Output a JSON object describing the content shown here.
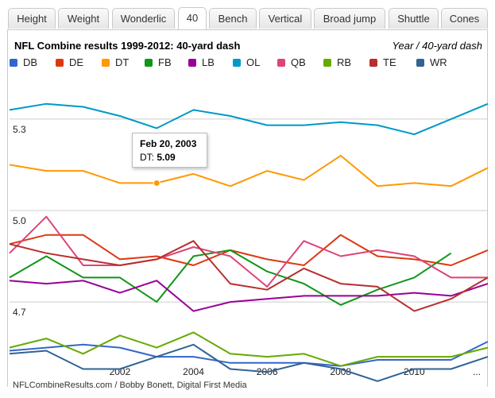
{
  "tabs": [
    {
      "label": "Height"
    },
    {
      "label": "Weight"
    },
    {
      "label": "Wonderlic"
    },
    {
      "label": "40",
      "active": true
    },
    {
      "label": "Bench"
    },
    {
      "label": "Vertical"
    },
    {
      "label": "Broad jump"
    },
    {
      "label": "Shuttle"
    },
    {
      "label": "Cones"
    }
  ],
  "tooltip": {
    "date": "Feb 20, 2003",
    "series": "DT:",
    "value": "5.09"
  },
  "credit": "NFLCombineResults.com / Bobby Bonett, Digital First Media",
  "chart_data": {
    "type": "line",
    "title": "NFL Combine results 1999-2012: 40-yard dash",
    "axis_note": "Year / 40-yard dash",
    "x": [
      1999,
      2000,
      2001,
      2002,
      2003,
      2004,
      2005,
      2006,
      2007,
      2008,
      2009,
      2010,
      2011,
      2012
    ],
    "x_ticks": [
      "2002",
      "2004",
      "2006",
      "2008",
      "2010",
      "..."
    ],
    "y_ticks": [
      "5.3",
      "5.0",
      "4.7"
    ],
    "ylim": [
      4.45,
      5.43
    ],
    "grid": true,
    "series": [
      {
        "name": "DB",
        "color": "#3366cc",
        "values": [
          4.54,
          4.55,
          4.56,
          4.55,
          4.52,
          4.52,
          4.5,
          4.5,
          4.5,
          4.49,
          4.51,
          4.51,
          4.51,
          4.57
        ]
      },
      {
        "name": "DE",
        "color": "#dc3912",
        "values": [
          4.89,
          4.92,
          4.92,
          4.84,
          4.85,
          4.82,
          4.87,
          4.84,
          4.82,
          4.92,
          4.85,
          4.84,
          4.82,
          4.87
        ]
      },
      {
        "name": "DT",
        "color": "#ff9900",
        "values": [
          5.15,
          5.13,
          5.13,
          5.09,
          5.09,
          5.12,
          5.08,
          5.13,
          5.1,
          5.18,
          5.08,
          5.09,
          5.08,
          5.14
        ]
      },
      {
        "name": "FB",
        "color": "#109618",
        "values": [
          4.78,
          4.85,
          4.78,
          4.78,
          4.7,
          4.85,
          4.87,
          4.8,
          4.76,
          4.69,
          4.74,
          4.78,
          4.86,
          null
        ]
      },
      {
        "name": "LB",
        "color": "#990099",
        "values": [
          4.77,
          4.76,
          4.77,
          4.73,
          4.77,
          4.67,
          4.7,
          4.71,
          4.72,
          4.72,
          4.72,
          4.73,
          4.72,
          4.76
        ]
      },
      {
        "name": "OL",
        "color": "#0099c6",
        "values": [
          5.33,
          5.35,
          5.34,
          5.31,
          5.27,
          5.33,
          5.31,
          5.28,
          5.28,
          5.29,
          5.28,
          5.25,
          5.3,
          5.35
        ]
      },
      {
        "name": "QB",
        "color": "#dd4477",
        "values": [
          4.86,
          4.98,
          4.82,
          4.82,
          4.84,
          4.88,
          4.85,
          4.75,
          4.9,
          4.85,
          4.87,
          4.85,
          4.78,
          4.78
        ]
      },
      {
        "name": "RB",
        "color": "#66aa00",
        "values": [
          4.55,
          4.58,
          4.53,
          4.59,
          4.55,
          4.6,
          4.53,
          4.52,
          4.53,
          4.49,
          4.52,
          4.52,
          4.52,
          4.55
        ]
      },
      {
        "name": "TE",
        "color": "#b82e2e",
        "values": [
          4.89,
          4.86,
          4.84,
          4.82,
          4.84,
          4.9,
          4.76,
          4.74,
          4.81,
          4.76,
          4.75,
          4.67,
          4.71,
          4.78
        ]
      },
      {
        "name": "WR",
        "color": "#316395",
        "values": [
          4.53,
          4.54,
          4.48,
          4.48,
          4.52,
          4.56,
          4.48,
          4.47,
          4.5,
          4.48,
          4.44,
          4.48,
          4.48,
          4.52
        ]
      }
    ],
    "highlight": {
      "series": "DT",
      "x": 2003,
      "value": 5.09
    }
  }
}
